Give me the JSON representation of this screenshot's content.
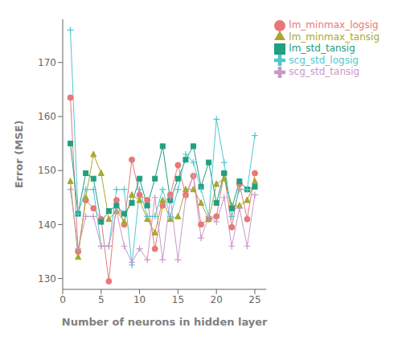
{
  "chart_data": {
    "type": "line",
    "xlabel": "Number of neurons in hidden layer",
    "ylabel": "Error (MSE)",
    "x": [
      1,
      2,
      3,
      4,
      5,
      6,
      7,
      8,
      9,
      10,
      11,
      12,
      13,
      14,
      15,
      16,
      17,
      18,
      19,
      20,
      21,
      22,
      23,
      24,
      25
    ],
    "series": [
      {
        "name": "lm_minmax_logsig",
        "color": "#E87878",
        "marker": "circle",
        "values": [
          163.5,
          135.0,
          144.5,
          143.0,
          141.0,
          129.5,
          144.5,
          140.0,
          152.0,
          145.5,
          144.5,
          135.5,
          143.5,
          145.5,
          151.0,
          145.5,
          149.0,
          140.0,
          141.0,
          141.5,
          149.5,
          139.5,
          147.5,
          141.0,
          149.5
        ]
      },
      {
        "name": "lm_minmax_tansig",
        "color": "#A8A830",
        "marker": "triangle",
        "values": [
          148.0,
          134.0,
          145.0,
          153.0,
          149.5,
          141.0,
          142.5,
          140.5,
          145.5,
          144.5,
          141.0,
          138.5,
          144.5,
          141.0,
          141.5,
          146.5,
          146.5,
          144.0,
          141.0,
          147.5,
          148.5,
          143.5,
          143.5,
          144.5,
          148.0
        ]
      },
      {
        "name": "lm_std_tansig",
        "color": "#20A080",
        "marker": "square",
        "values": [
          155.0,
          142.0,
          149.5,
          148.5,
          140.5,
          142.5,
          143.5,
          142.0,
          144.0,
          148.5,
          143.5,
          148.5,
          154.5,
          144.5,
          148.5,
          152.0,
          154.5,
          147.0,
          151.5,
          144.0,
          149.5,
          143.0,
          148.0,
          146.5,
          147.0
        ]
      },
      {
        "name": "scg_std_logsig",
        "color": "#50C8D0",
        "marker": "plus",
        "values": [
          176.0,
          142.0,
          146.5,
          146.5,
          136.0,
          136.0,
          146.5,
          146.5,
          132.5,
          146.5,
          141.5,
          141.5,
          146.5,
          141.5,
          146.5,
          153.0,
          151.5,
          146.5,
          141.5,
          159.5,
          151.5,
          141.5,
          146.5,
          146.5,
          156.5
        ]
      },
      {
        "name": "scg_std_tansig",
        "color": "#C898C8",
        "marker": "plus",
        "values": [
          146.5,
          135.5,
          141.5,
          141.5,
          136.0,
          136.0,
          142.5,
          136.0,
          133.0,
          135.5,
          133.5,
          145.0,
          133.5,
          145.0,
          133.5,
          145.0,
          149.0,
          137.5,
          141.5,
          140.5,
          145.0,
          136.0,
          143.0,
          136.0,
          145.5
        ]
      }
    ],
    "xlim": [
      0.0,
      26.5
    ],
    "ylim": [
      128,
      178
    ],
    "xticks": [
      0,
      5,
      10,
      15,
      20,
      25
    ],
    "yticks": [
      130,
      140,
      150,
      160,
      170
    ],
    "grid": false,
    "legend": "upper right"
  }
}
